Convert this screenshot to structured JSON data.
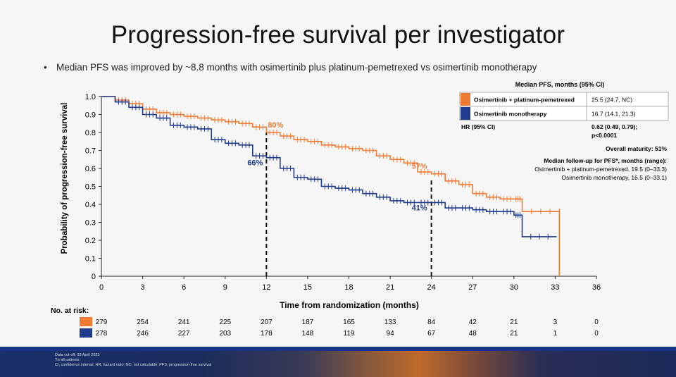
{
  "title": "Progression-free survival per investigator",
  "bullet": "Median PFS was improved by ~8.8 months with osimertinib plus platinum-pemetrexed vs osimertinib monotherapy",
  "colors": {
    "combo": "#f07a32",
    "mono": "#1f3b8c",
    "dash": "#111111"
  },
  "legend": {
    "header": "Median PFS, months (95% CI)",
    "rows": [
      {
        "label": "Osimertinib + platinum-pemetrexed",
        "value": "25.5 (24.7, NC)"
      },
      {
        "label": "Osimertinib monotherapy",
        "value": "16.7 (14.1, 21.3)"
      }
    ],
    "hr_label": "HR (95% CI)",
    "hr_value": "0.62 (0.49, 0.79);",
    "hr_p": "p<0.0001",
    "maturity": "Overall maturity: 51%",
    "followup_title": "Median follow-up for PFS*, months (range):",
    "followup_combo": "Osimertinib + platinum-pemetrexed, 19.5 (0–33.3)",
    "followup_mono": "Osimertinib monotherapy, 16.5 (0–33.1)"
  },
  "risk": {
    "title": "No. at risk:",
    "combo": [
      "279",
      "254",
      "241",
      "225",
      "207",
      "187",
      "165",
      "133",
      "84",
      "42",
      "21",
      "3",
      "0"
    ],
    "mono": [
      "278",
      "246",
      "227",
      "203",
      "178",
      "148",
      "119",
      "94",
      "67",
      "48",
      "21",
      "1",
      "0"
    ]
  },
  "footer": {
    "cutoff": "Data cut-off: 03 April 2023",
    "note1": "*In all patients",
    "note2": "CI, confidence interval; HR, hazard ratio; NC, not calculable; PFS, progression-free survival"
  },
  "chart_data": {
    "type": "line",
    "xlabel": "Time from randomization (months)",
    "ylabel": "Probability of progression-free survival",
    "xlim": [
      0,
      36
    ],
    "ylim": [
      0,
      1.0
    ],
    "xticks": [
      "0",
      "3",
      "6",
      "9",
      "12",
      "15",
      "18",
      "21",
      "24",
      "27",
      "30",
      "33",
      "36"
    ],
    "yticks": [
      "0",
      "0.1",
      "0.2",
      "0.3",
      "0.4",
      "0.5",
      "0.6",
      "0.7",
      "0.8",
      "0.9",
      "1.0"
    ],
    "annotations": [
      {
        "x": 12,
        "y": 0.8,
        "label": "80%",
        "series": "combo"
      },
      {
        "x": 12,
        "y": 0.66,
        "label": "66%",
        "series": "mono"
      },
      {
        "x": 24,
        "y": 0.57,
        "label": "57%",
        "series": "combo"
      },
      {
        "x": 24,
        "y": 0.41,
        "label": "41%",
        "series": "mono"
      }
    ],
    "series": [
      {
        "name": "Osimertinib + platinum-pemetrexed",
        "key": "combo",
        "x": [
          0,
          1,
          2,
          3,
          4,
          5,
          6,
          7,
          8,
          9,
          10,
          11,
          12,
          13,
          14,
          15,
          16,
          17,
          18,
          19,
          20,
          21,
          22,
          23,
          24,
          25,
          26,
          27,
          28,
          29,
          30,
          30.6,
          33.3,
          33.3
        ],
        "y": [
          1.0,
          0.98,
          0.96,
          0.93,
          0.91,
          0.9,
          0.89,
          0.88,
          0.87,
          0.86,
          0.85,
          0.83,
          0.8,
          0.78,
          0.76,
          0.75,
          0.73,
          0.72,
          0.71,
          0.7,
          0.67,
          0.65,
          0.63,
          0.58,
          0.57,
          0.53,
          0.51,
          0.46,
          0.44,
          0.43,
          0.43,
          0.36,
          0.36,
          0.0
        ]
      },
      {
        "name": "Osimertinib monotherapy",
        "key": "mono",
        "x": [
          0,
          1,
          2,
          3,
          4,
          5,
          6,
          7,
          8,
          9,
          10,
          11,
          12,
          13,
          14,
          15,
          16,
          17,
          18,
          19,
          20,
          21,
          22,
          23,
          24,
          25,
          26,
          27,
          28,
          29,
          30,
          30.6,
          33.1
        ],
        "y": [
          1.0,
          0.97,
          0.94,
          0.9,
          0.88,
          0.84,
          0.83,
          0.82,
          0.76,
          0.74,
          0.73,
          0.67,
          0.66,
          0.6,
          0.55,
          0.54,
          0.5,
          0.49,
          0.48,
          0.46,
          0.44,
          0.42,
          0.41,
          0.41,
          0.41,
          0.38,
          0.38,
          0.37,
          0.36,
          0.36,
          0.34,
          0.22,
          0.22
        ]
      }
    ]
  }
}
